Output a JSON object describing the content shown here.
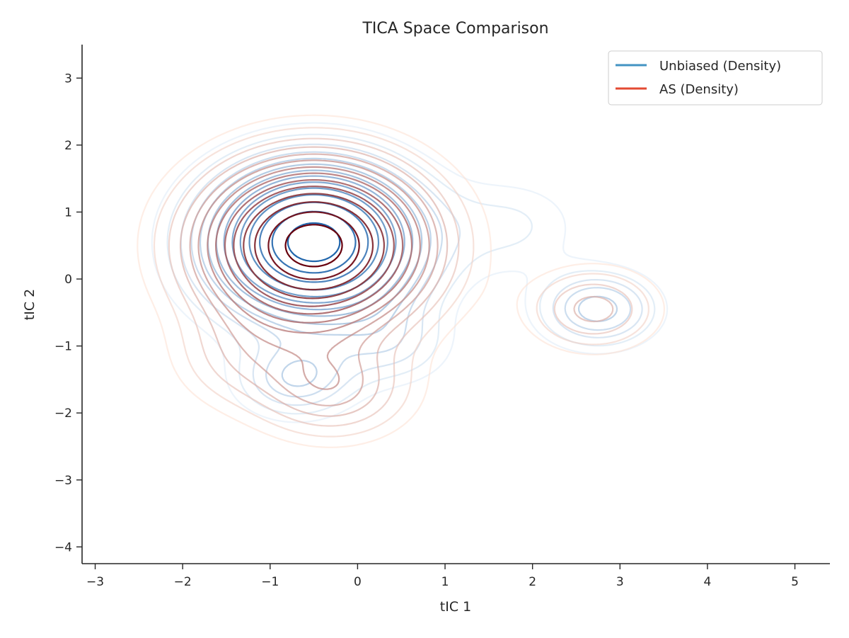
{
  "chart_data": {
    "type": "contour",
    "title": "TICA Space Comparison",
    "xlabel": "tIC 1",
    "ylabel": "tIC 2",
    "xlim": [
      -3.15,
      5.4
    ],
    "ylim": [
      -4.25,
      3.5
    ],
    "xticks": [
      -3,
      -2,
      -1,
      0,
      1,
      2,
      3,
      4,
      5
    ],
    "yticks": [
      -4,
      -3,
      -2,
      -1,
      0,
      1,
      2,
      3
    ],
    "xtick_labels": [
      "−3",
      "−2",
      "−1",
      "0",
      "1",
      "2",
      "3",
      "4",
      "5"
    ],
    "ytick_labels": [
      "−4",
      "−3",
      "−2",
      "−1",
      "0",
      "1",
      "2",
      "3"
    ],
    "grid": false,
    "legend_position": "top-right",
    "levels": [
      0.06,
      0.1,
      0.15,
      0.2,
      0.25,
      0.3,
      0.36,
      0.42,
      0.49,
      0.56,
      0.64,
      0.73,
      0.83,
      0.93
    ],
    "series": [
      {
        "name": "Unbiased (Density)",
        "color": "#4393c3",
        "colormap": [
          "#deebf7",
          "#2166ac"
        ],
        "components": [
          {
            "weight": 1.0,
            "cx": -0.5,
            "cy": 0.55,
            "sx": 0.78,
            "sy": 0.75
          },
          {
            "weight": 0.28,
            "cx": 2.75,
            "cy": -0.45,
            "sx": 0.45,
            "sy": 0.38
          },
          {
            "weight": 0.24,
            "cx": -0.7,
            "cy": -1.5,
            "sx": 0.45,
            "sy": 0.38
          },
          {
            "weight": 0.14,
            "cx": 0.4,
            "cy": -1.0,
            "sx": 0.45,
            "sy": 0.4
          },
          {
            "weight": 0.1,
            "cx": 1.8,
            "cy": 0.8,
            "sx": 0.55,
            "sy": 0.5
          }
        ]
      },
      {
        "name": "AS (Density)",
        "color": "#e34a33",
        "colormap": [
          "#fde0d2",
          "#67000d"
        ],
        "components": [
          {
            "weight": 1.0,
            "cx": -0.5,
            "cy": 0.5,
            "sx": 0.85,
            "sy": 0.82
          },
          {
            "weight": 0.22,
            "cx": 2.7,
            "cy": -0.45,
            "sx": 0.5,
            "sy": 0.42
          },
          {
            "weight": 0.26,
            "cx": -0.3,
            "cy": -1.65,
            "sx": 0.6,
            "sy": 0.5
          },
          {
            "weight": 0.12,
            "cx": -1.4,
            "cy": -1.2,
            "sx": 0.5,
            "sy": 0.5
          }
        ]
      }
    ]
  }
}
